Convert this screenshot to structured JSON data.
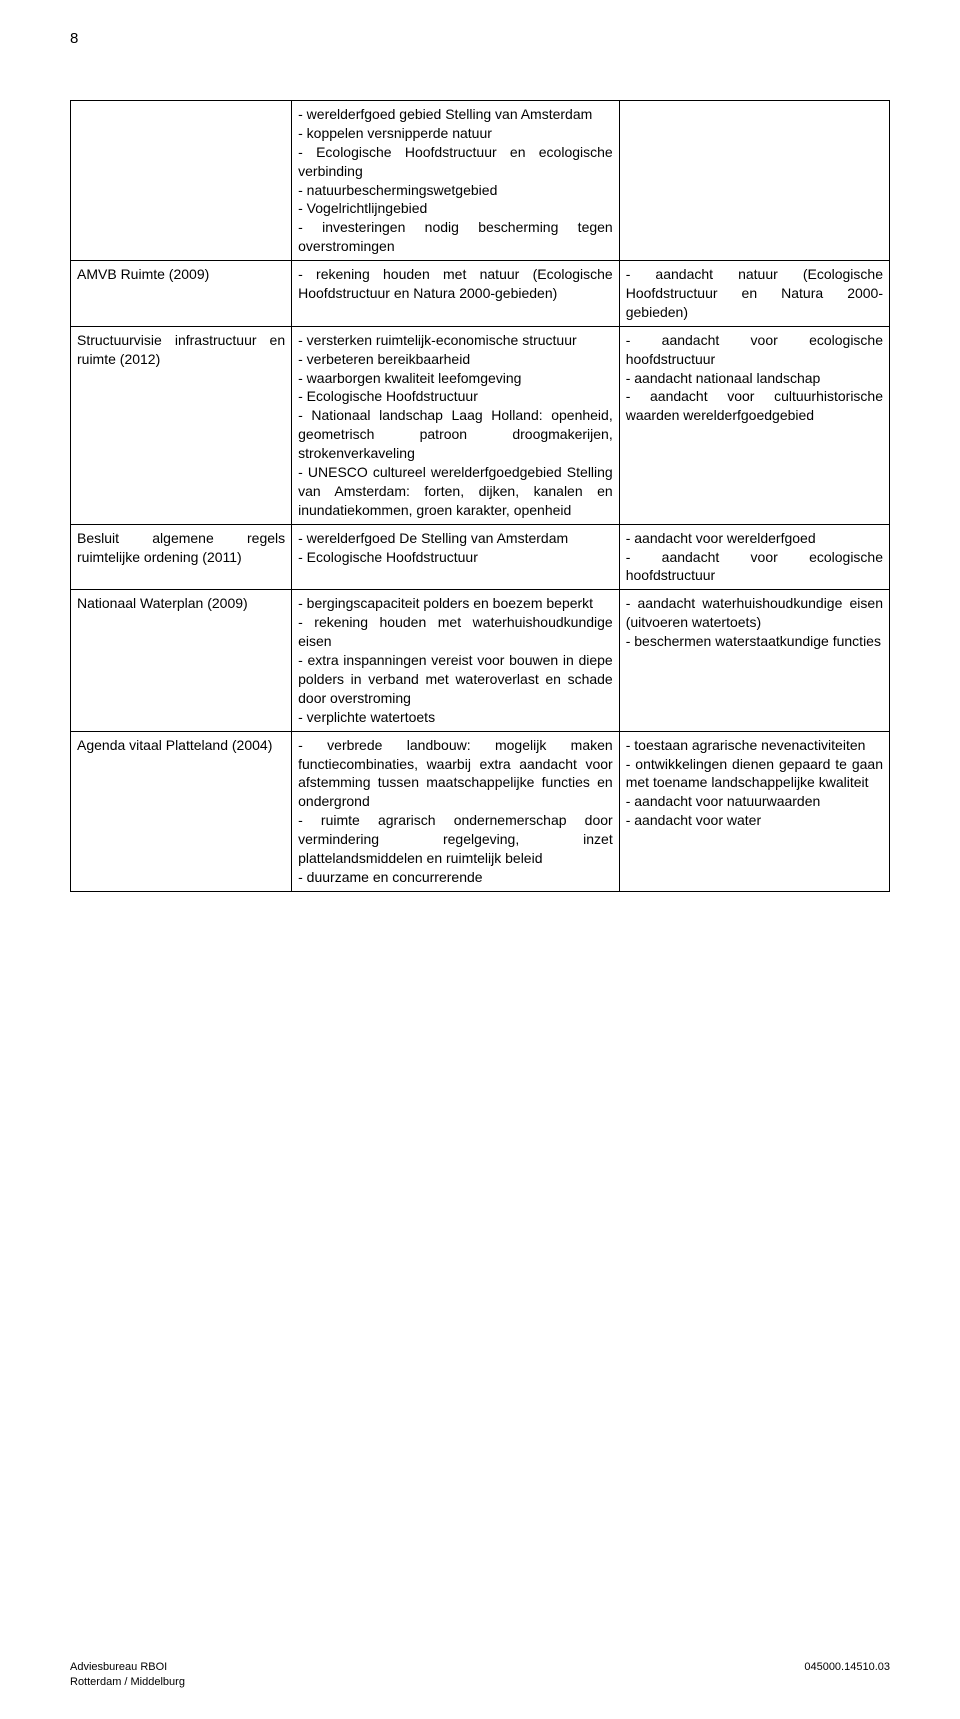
{
  "page_number": "8",
  "table": {
    "rows": [
      {
        "c1": "",
        "c2": "- werelderfgoed gebied Stelling van Amsterdam\n- koppelen versnipperde natuur\n- Ecologische Hoofdstructuur en ecologische verbinding\n- natuurbeschermingswetgebied\n- Vogelrichtlijngebied\n- investeringen nodig bescherming tegen overstromingen",
        "c3": ""
      },
      {
        "c1": "AMVB Ruimte (2009)",
        "c2": "- rekening houden met natuur (Ecologische Hoofdstructuur en Natura 2000-gebieden)",
        "c3": "- aandacht natuur (Ecologische Hoofdstructuur en Natura 2000-gebieden)"
      },
      {
        "c1": "Structuurvisie infrastructuur en ruimte (2012)",
        "c2": "- versterken ruimtelijk-economische structuur\n- verbeteren bereikbaarheid\n- waarborgen kwaliteit leefomgeving\n- Ecologische Hoofdstructuur\n- Nationaal landschap Laag Holland: openheid, geometrisch patroon droogmakerijen, strokenverkaveling\n- UNESCO cultureel werelderfgoedgebied Stelling van Amsterdam: forten, dijken, kanalen en inundatiekommen, groen karakter, openheid",
        "c3": "- aandacht voor ecologische hoofdstructuur\n- aandacht nationaal landschap\n- aandacht voor cultuurhistorische waarden werelderfgoedgebied"
      },
      {
        "c1": "Besluit algemene regels ruimtelijke ordening (2011)",
        "c2": "- werelderfgoed De Stelling van Amsterdam\n- Ecologische Hoofdstructuur",
        "c3": "- aandacht voor werelderfgoed\n- aandacht voor ecologische hoofdstructuur"
      },
      {
        "c1": "Nationaal Waterplan (2009)",
        "c2": "- bergingscapaciteit polders en boezem beperkt\n- rekening houden met waterhuishoudkundige eisen\n- extra inspanningen vereist voor bouwen in diepe polders in verband met wateroverlast en schade door overstroming\n- verplichte watertoets",
        "c3": "- aandacht waterhuishoudkundige eisen (uitvoeren watertoets)\n- beschermen waterstaatkundige functies"
      },
      {
        "c1": "Agenda vitaal Platteland (2004)",
        "c2": "- verbrede landbouw: mogelijk maken functiecombinaties, waarbij extra aandacht voor afstemming tussen maatschappelijke functies en ondergrond\n- ruimte agrarisch ondernemerschap door vermindering regelgeving, inzet plattelandsmiddelen en ruimtelijk beleid\n- duurzame en concurrerende",
        "c3": "- toestaan agrarische nevenactiviteiten\n- ontwikkelingen dienen gepaard te gaan met toename landschappelijke kwaliteit\n- aandacht voor natuurwaarden\n- aandacht voor water"
      }
    ]
  },
  "footer": {
    "left": "Adviesbureau RBOI\nRotterdam / Middelburg",
    "right": "045000.14510.03"
  }
}
